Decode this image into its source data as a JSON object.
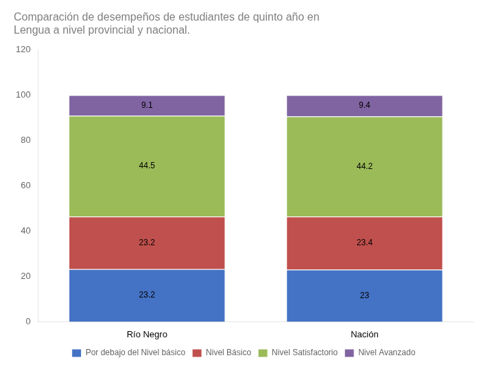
{
  "chart_data": {
    "type": "bar",
    "title": "Comparación de desempeños de estudiantes de quinto año en\nLengua a nivel provincial y nacional.",
    "categories": [
      "Río Negro",
      "Nación"
    ],
    "series": [
      {
        "name": "Por debajo del Nivel básico",
        "color": "#4472C4",
        "values": [
          23.2,
          23.0
        ]
      },
      {
        "name": "Nivel Básico",
        "color": "#C0504D",
        "values": [
          23.2,
          23.4
        ]
      },
      {
        "name": "Nivel Satisfactorio",
        "color": "#9BBB59",
        "values": [
          44.5,
          44.2
        ]
      },
      {
        "name": "Nivel Avanzado",
        "color": "#8064A2",
        "values": [
          9.1,
          9.4
        ]
      }
    ],
    "stacked": true,
    "ylim": [
      0,
      120
    ],
    "yticks": [
      0,
      20,
      40,
      60,
      80,
      100,
      120
    ],
    "grid": false,
    "legend": "bottom",
    "data_labels": true
  }
}
